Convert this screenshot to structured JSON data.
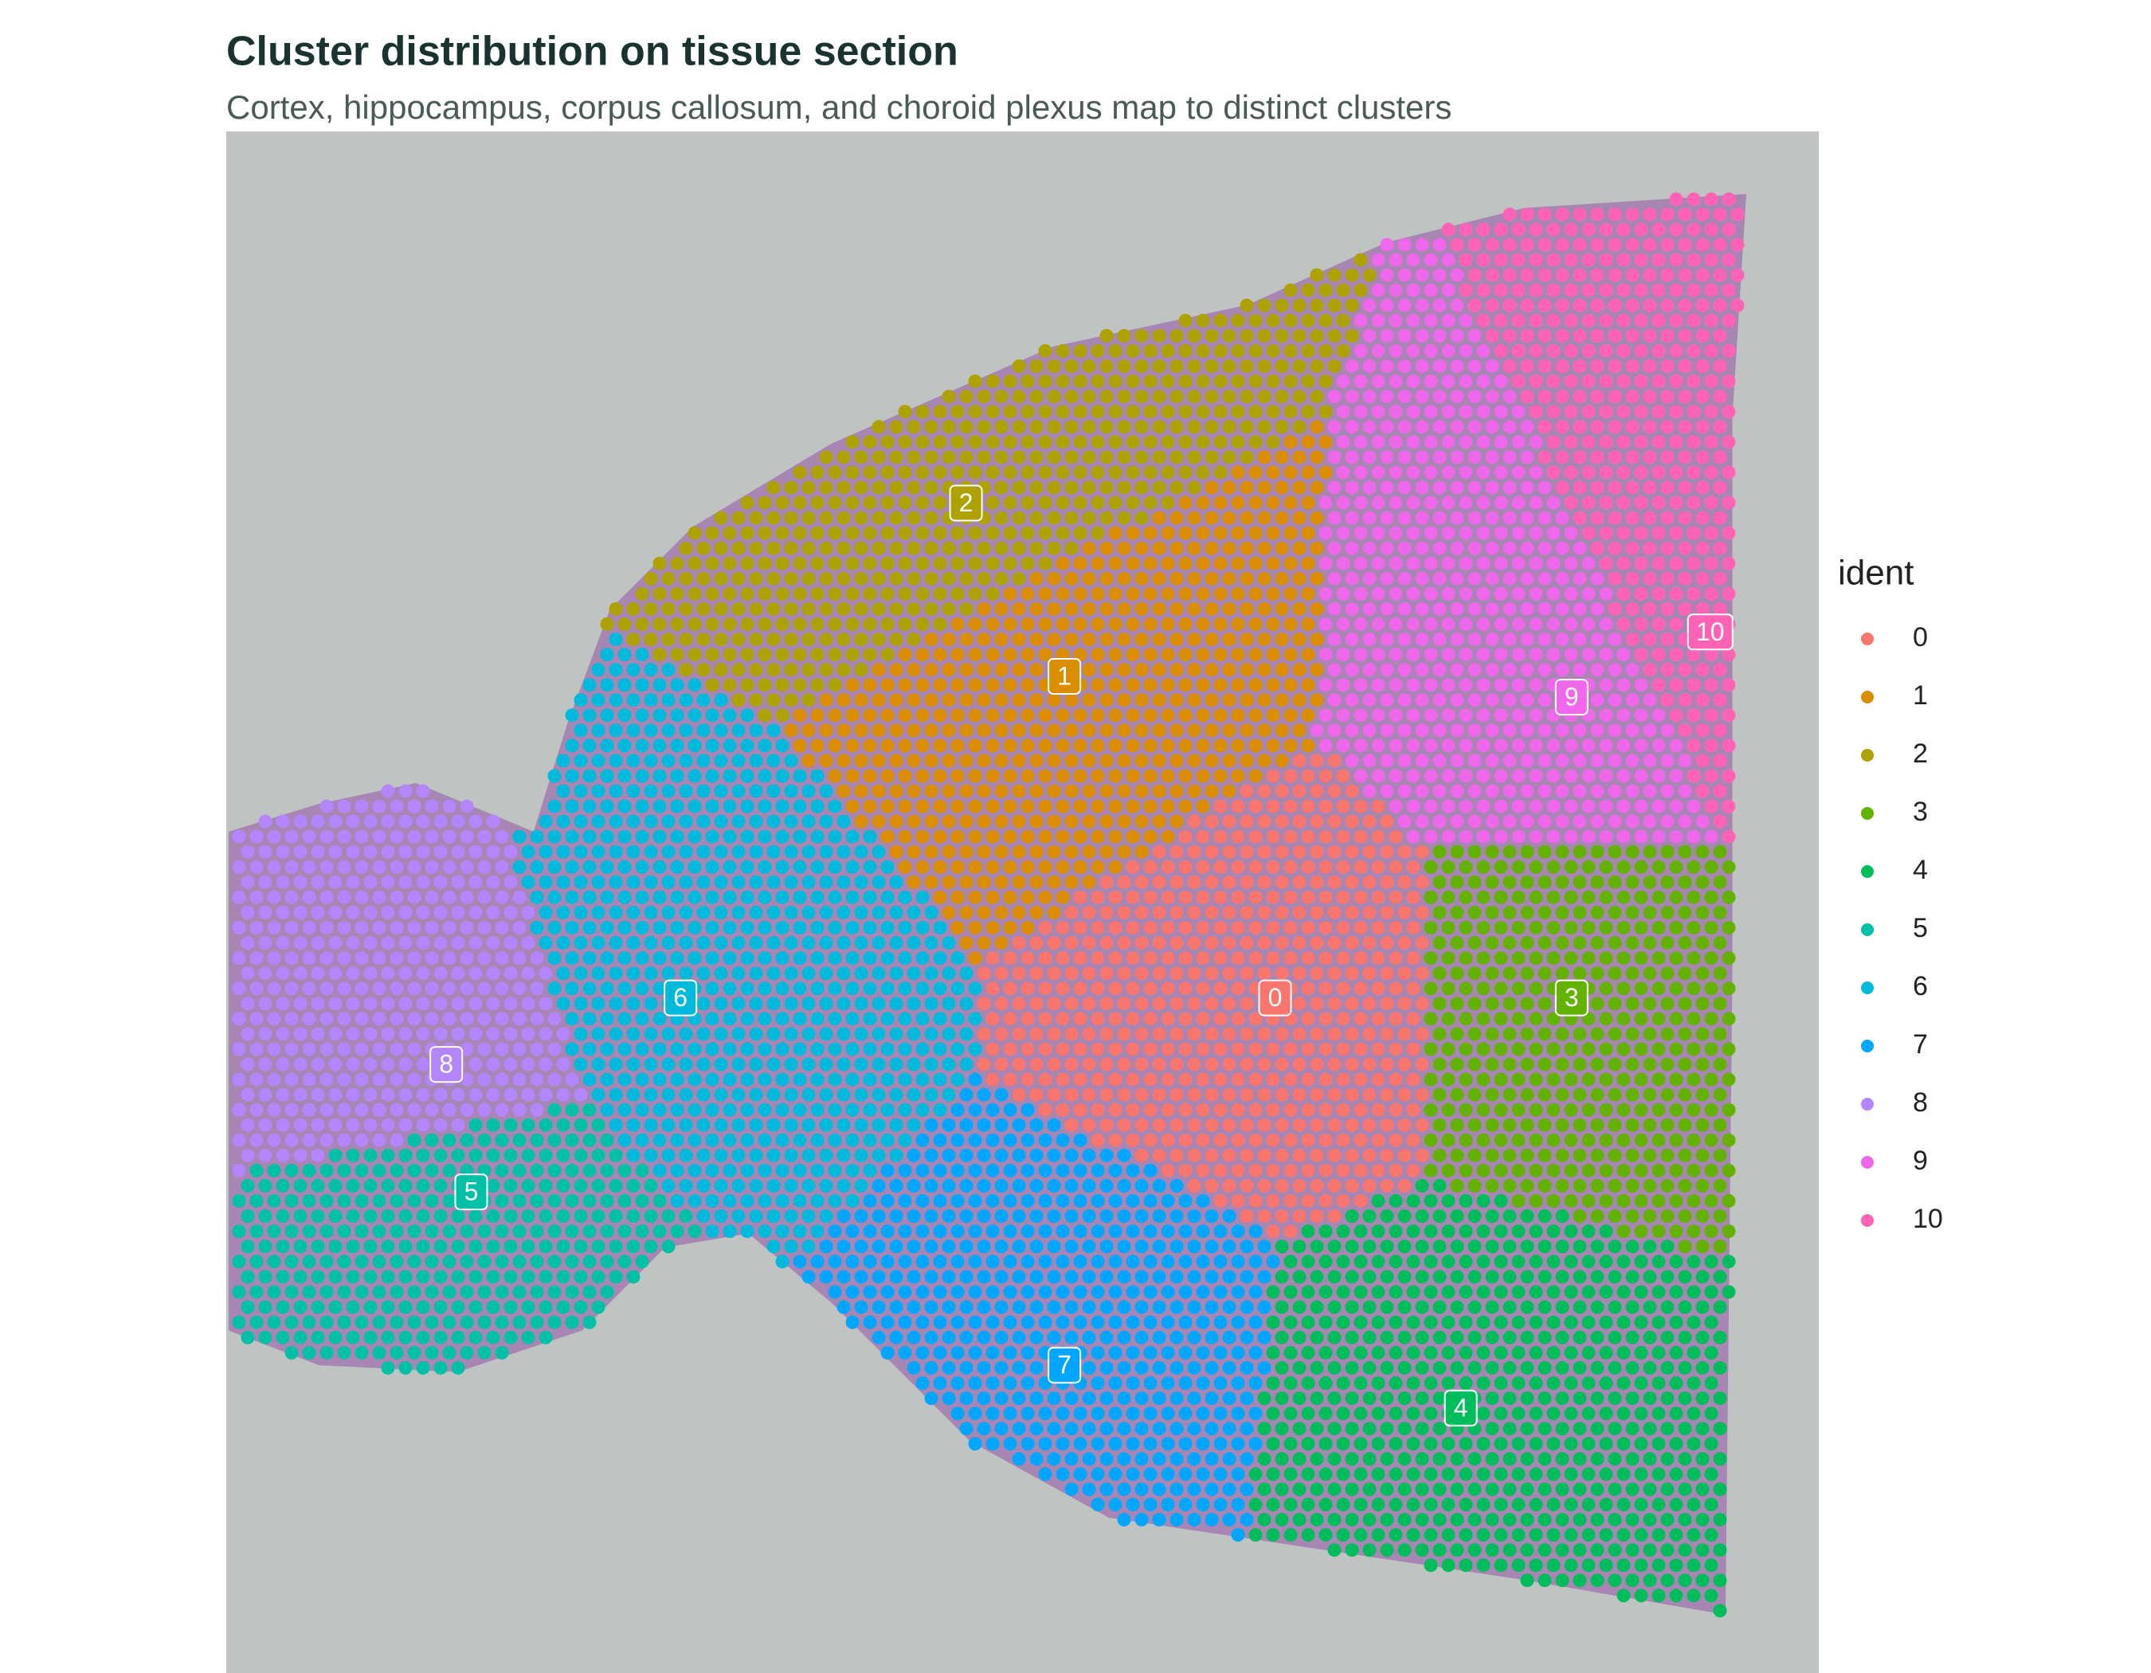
{
  "chart_data": {
    "type": "spatial",
    "title": "Cluster distribution on tissue section",
    "subtitle": "Cortex, hippocampus, corpus callosum, and choroid plexus map to distinct clusters",
    "legend_title": "ident",
    "series": [
      {
        "name": "0",
        "color": "#F8766D"
      },
      {
        "name": "1",
        "color": "#DB8E00"
      },
      {
        "name": "2",
        "color": "#AEA200"
      },
      {
        "name": "3",
        "color": "#64B200"
      },
      {
        "name": "4",
        "color": "#00BD5C"
      },
      {
        "name": "5",
        "color": "#00C1A7"
      },
      {
        "name": "6",
        "color": "#00BADE"
      },
      {
        "name": "7",
        "color": "#00A6FF"
      },
      {
        "name": "8",
        "color": "#B385FF"
      },
      {
        "name": "9",
        "color": "#EF67EB"
      },
      {
        "name": "10",
        "color": "#FF63B6"
      }
    ]
  }
}
